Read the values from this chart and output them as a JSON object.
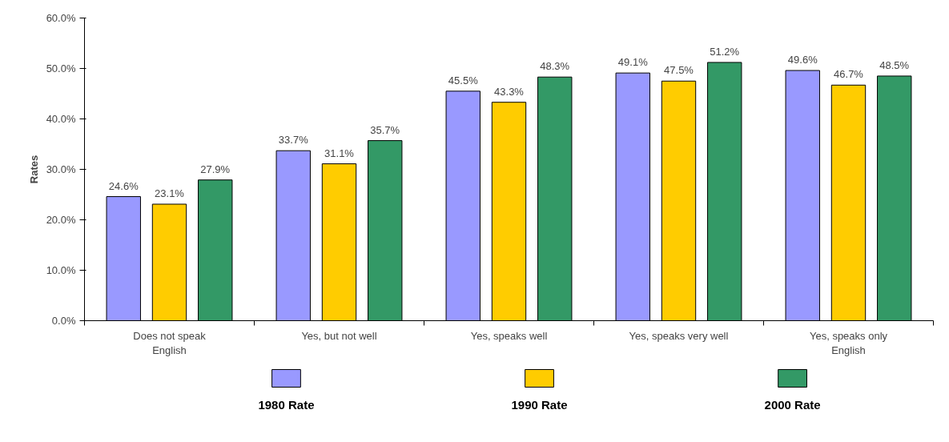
{
  "chart_data": {
    "type": "bar",
    "ylabel": "Rates",
    "categories": [
      "Does not speak English",
      "Yes, but not well",
      "Yes, speaks well",
      "Yes, speaks very well",
      "Yes, speaks only English"
    ],
    "series": [
      {
        "name": "1980 Rate",
        "color": "#9999ff",
        "values": [
          24.6,
          33.7,
          45.5,
          49.1,
          49.6
        ],
        "value_labels": [
          "24.6%",
          "33.7%",
          "45.5%",
          "49.1%",
          "49.6%"
        ]
      },
      {
        "name": "1990 Rate",
        "color": "#ffcc00",
        "values": [
          23.1,
          31.1,
          43.3,
          47.5,
          46.7
        ],
        "value_labels": [
          "23.1%",
          "31.1%",
          "43.3%",
          "47.5%",
          "46.7%"
        ]
      },
      {
        "name": "2000 Rate",
        "color": "#339966",
        "values": [
          27.9,
          35.7,
          48.3,
          51.2,
          48.5
        ],
        "value_labels": [
          "27.9%",
          "35.7%",
          "48.3%",
          "51.2%",
          "48.5%"
        ]
      }
    ],
    "ylim": [
      0,
      60
    ],
    "yticks": [
      {
        "value": 0,
        "label": "0.0%"
      },
      {
        "value": 10,
        "label": "10.0%"
      },
      {
        "value": 20,
        "label": "20.0%"
      },
      {
        "value": 30,
        "label": "30.0%"
      },
      {
        "value": 40,
        "label": "40.0%"
      },
      {
        "value": 50,
        "label": "50.0%"
      },
      {
        "value": 60,
        "label": "60.0%"
      }
    ],
    "grid": false,
    "legend": "bottom"
  }
}
